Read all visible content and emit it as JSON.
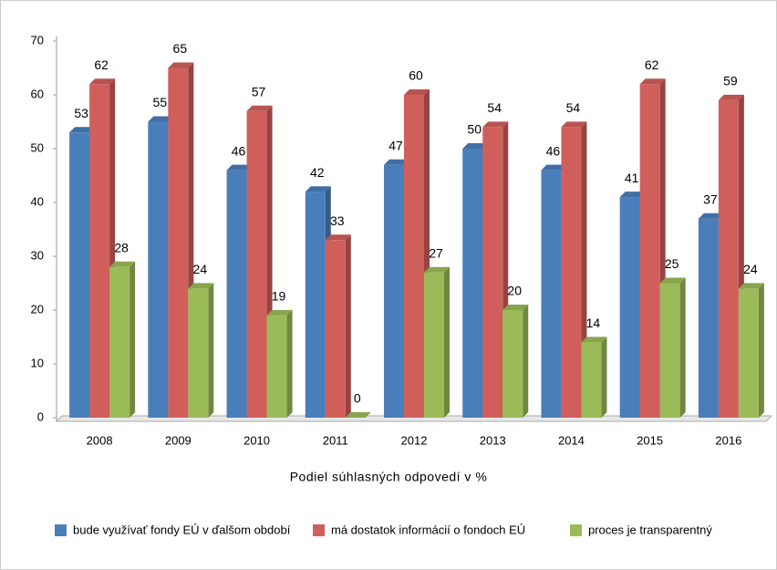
{
  "chart_data": {
    "type": "bar",
    "x_label": "Podiel súhlasných odpovedí v %",
    "categories": [
      "2008",
      "2009",
      "2010",
      "2011",
      "2012",
      "2013",
      "2014",
      "2015",
      "2016"
    ],
    "series": [
      {
        "name": "bude využívať fondy EÚ v ďalšom období",
        "color": "#4a7ebb",
        "values": [
          53,
          55,
          46,
          42,
          47,
          50,
          46,
          41,
          37
        ]
      },
      {
        "name": "má dostatok informácií o fondoch EÚ",
        "color": "#d05f5c",
        "values": [
          62,
          65,
          57,
          33,
          60,
          54,
          54,
          62,
          59
        ]
      },
      {
        "name": "proces je transparentný",
        "color": "#9bbb59",
        "values": [
          28,
          24,
          19,
          0,
          27,
          20,
          14,
          25,
          24
        ]
      }
    ],
    "ylim": [
      0,
      70
    ],
    "yticks": [
      0,
      10,
      20,
      30,
      40,
      50,
      60,
      70
    ],
    "legend": "bottom"
  }
}
